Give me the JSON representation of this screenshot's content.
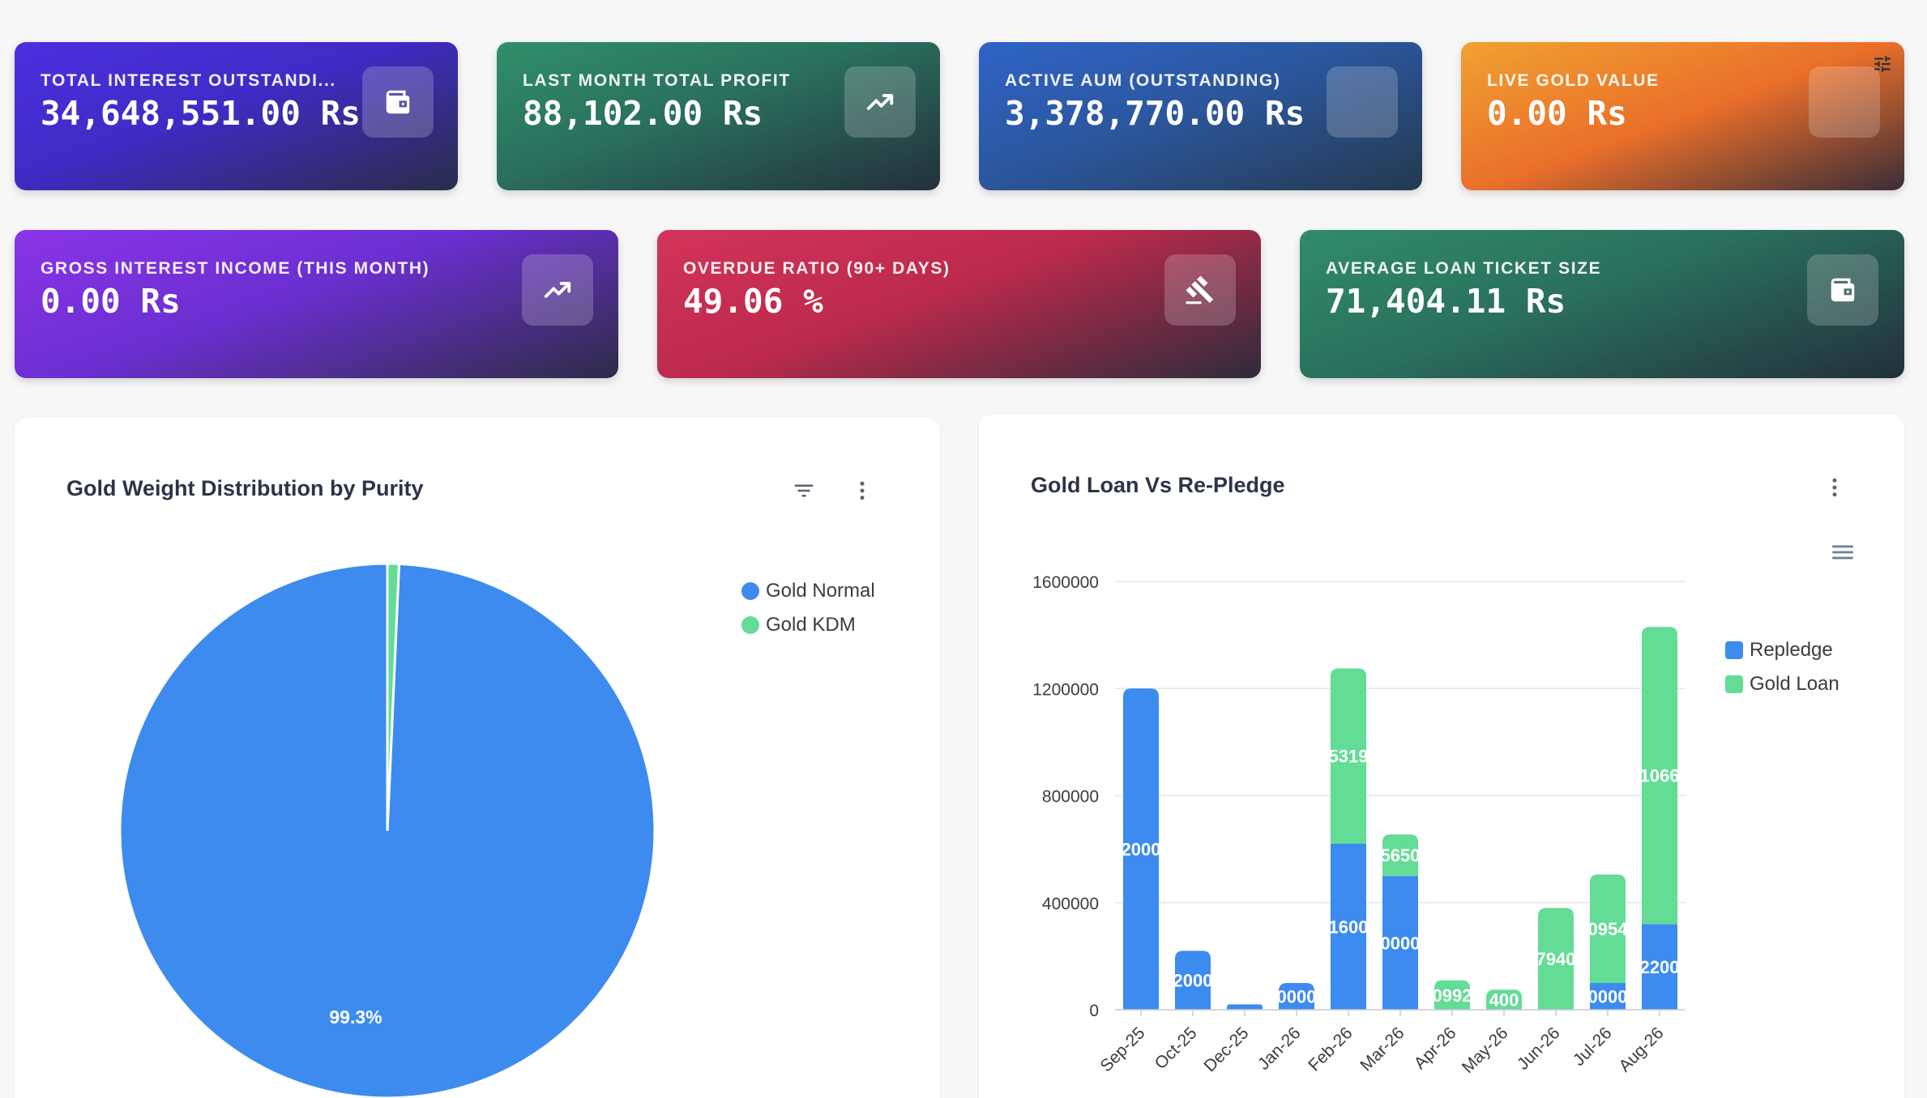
{
  "cards": [
    {
      "label": "TOTAL INTEREST OUTSTANDI...",
      "value": "34,648,551.00 Rs",
      "icon": "wallet-icon"
    },
    {
      "label": "LAST MONTH TOTAL PROFIT",
      "value": "88,102.00 Rs",
      "icon": "trending-up-icon"
    },
    {
      "label": "ACTIVE AUM (OUTSTANDING)",
      "value": "3,378,770.00 Rs",
      "icon": "blank-icon"
    },
    {
      "label": "LIVE GOLD VALUE",
      "value": "0.00 Rs",
      "icon": "blank-icon"
    },
    {
      "label": "GROSS INTEREST INCOME (THIS MONTH)",
      "value": "0.00 Rs",
      "icon": "trending-up-icon"
    },
    {
      "label": "OVERDUE RATIO (90+ DAYS)",
      "value": "49.06 %",
      "icon": "gavel-icon"
    },
    {
      "label": "AVERAGE LOAN TICKET SIZE",
      "value": "71,404.11 Rs",
      "icon": "wallet-icon"
    }
  ],
  "colors": {
    "blue": "#3d8bef",
    "green": "#63dc96"
  },
  "pie_panel": {
    "title": "Gold Weight Distribution by Purity",
    "legend": [
      "Gold Normal",
      "Gold KDM"
    ],
    "slice_label": "99.3%"
  },
  "bar_panel": {
    "title": "Gold Loan Vs Re-Pledge",
    "legend": [
      "Repledge",
      "Gold Loan"
    ]
  },
  "chart_data": [
    {
      "type": "pie",
      "title": "Gold Weight Distribution by Purity",
      "labels": [
        "Gold Normal",
        "Gold KDM"
      ],
      "values": [
        99.3,
        0.7
      ],
      "data_labels": [
        "99.3%",
        ""
      ],
      "legend": "top-right"
    },
    {
      "type": "bar",
      "stacked": true,
      "title": "Gold Loan Vs Re-Pledge",
      "categories": [
        "Sep-25",
        "Oct-25",
        "Dec-25",
        "Jan-26",
        "Feb-26",
        "Mar-26",
        "Apr-26",
        "May-26",
        "Jun-26",
        "Jul-26",
        "Aug-26"
      ],
      "series": [
        {
          "name": "Repledge",
          "values": [
            1200000,
            220000,
            20000,
            100000,
            620000,
            500000,
            0,
            0,
            0,
            100000,
            320000
          ],
          "data_labels": [
            "2000",
            "2000",
            "",
            "0000",
            "1600",
            "0000",
            "",
            "",
            "",
            "0000",
            "2200"
          ]
        },
        {
          "name": "Gold Loan",
          "values": [
            0,
            0,
            0,
            0,
            655000,
            155000,
            110000,
            75000,
            380000,
            405000,
            1110000
          ],
          "data_labels": [
            "",
            "",
            "",
            "",
            "5319",
            "5650",
            "0992",
            "400",
            "7940",
            "0954",
            "1066"
          ]
        }
      ],
      "y_ticks": [
        "0",
        "400000",
        "800000",
        "1200000",
        "1600000"
      ],
      "ylim": [
        0,
        1600000
      ],
      "grid": true,
      "legend": "top-right"
    }
  ]
}
